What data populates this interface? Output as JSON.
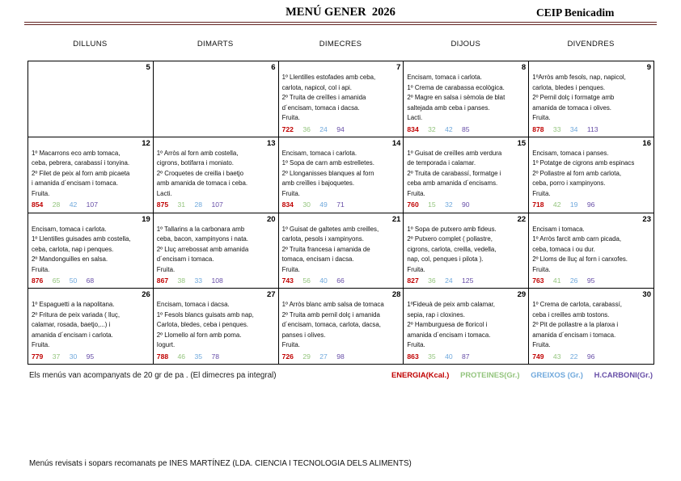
{
  "header": {
    "title": "MENÚ GENER  2026",
    "school": "CEIP Benicadim"
  },
  "calendar": {
    "day_headers": [
      "DILLUNS",
      "DIMARTS",
      "DIMECRES",
      "DIJOUS",
      "DIVENDRES"
    ],
    "weeks": [
      {
        "cells": [
          {
            "day": "5",
            "menu": "",
            "values": null
          },
          {
            "day": "6",
            "menu": "",
            "values": null
          },
          {
            "day": "7",
            "menu": "1º Llentilles estofades amb ceba,\ncarlota, napicol, col i api.\n2º Truita de creïlles i amanida\nd´encisam, tomaca i dacsa.\nFruita.",
            "values": [
              "722",
              "36",
              "24",
              "94"
            ]
          },
          {
            "day": "8",
            "menu": "Encisam, tomaca i carlota.\n1º Crema de carabassa ecològica.\n2º Magre en salsa i sèmola de blat\nsaltejada amb ceba i panses.\nLacti.",
            "values": [
              "834",
              "32",
              "42",
              "85"
            ]
          },
          {
            "day": "9",
            "menu": "1ºArròs amb fesols, nap, napicol,\ncarlota, bledes i penques.\n2º Pernil dolç i formatge amb\namanida de tomaca i olives.\nFruita.",
            "values": [
              "878",
              "33",
              "34",
              "113"
            ]
          }
        ]
      },
      {
        "cells": [
          {
            "day": "12",
            "menu": "1º Macarrons eco amb tomaca,\nceba, pebrera, carabassí i tonyina.\n2º Filet de peix al forn amb picaeta\ni amanida d´encisam i tomaca.\nFruita.",
            "values": [
              "854",
              "28",
              "42",
              "107"
            ]
          },
          {
            "day": "13",
            "menu": "1º Arròs al forn amb costella,\ncigrons, botifarra i moniato.\n2º Croquetes de creilla i baetjo\namb amanida de tomaca i ceba.\nLacti.",
            "values": [
              "875",
              "31",
              "28",
              "107"
            ]
          },
          {
            "day": "14",
            "menu": "Encisam, tomaca i carlota.\n1º Sopa de carn amb estrelletes.\n2º Llonganisses blanques al forn\namb creïlles i bajoquetes.\nFruita.",
            "values": [
              "834",
              "30",
              "49",
              "71"
            ]
          },
          {
            "day": "15",
            "menu": "1º Guisat de creïlles amb verdura\nde temporada i calamar.\n2º Truita de carabassí, formatge i\nceba amb amanida d´encisams.\nFruita.",
            "values": [
              "760",
              "15",
              "32",
              "90"
            ]
          },
          {
            "day": "16",
            "menu": "Encisam, tomaca i panses.\n1º Potatge de cigrons amb espinacs\n2º Pollastre al forn amb carlota,\nceba, porro i xampinyons.\nFruita.",
            "values": [
              "718",
              "42",
              "19",
              "96"
            ]
          }
        ]
      },
      {
        "cells": [
          {
            "day": "19",
            "menu": "Encisam, tomaca i carlota.\n1º Llentilles guisades amb costella,\nceba, carlota, nap i penques.\n2º Mandonguilles en salsa.\nFruita.",
            "values": [
              "876",
              "65",
              "50",
              "68"
            ]
          },
          {
            "day": "20",
            "menu": "1º Tallarins a la carbonara amb\nceba, bacon, xampinyons i nata.\n2º Lluç arrebossat amb amanida\nd´encisam i tomaca.\nFruita.",
            "values": [
              "867",
              "38",
              "33",
              "108"
            ]
          },
          {
            "day": "21",
            "menu": "1º Guisat de galtetes amb creilles,\ncarlota, pesols i xampinyons.\n2º Truita francesa i amanida de\ntomaca, encisam i dacsa.\nFruita.",
            "values": [
              "743",
              "56",
              "40",
              "66"
            ]
          },
          {
            "day": "22",
            "menu": "1º Sopa de putxero amb fideus.\n2º Putxero complet ( pollastre,\ncigrons, carlota, creilla, vedella,\nnap, col, penques i pilota ).\nFruita.",
            "values": [
              "827",
              "36",
              "24",
              "125"
            ]
          },
          {
            "day": "23",
            "menu": "Encisam i tomaca.\n1º Arròs farcit amb carn picada,\nceba, tomaca i ou dur.\n2º Lloms de lluç al forn i carxofes.\nFruita.",
            "values": [
              "763",
              "41",
              "26",
              "95"
            ]
          }
        ]
      },
      {
        "cells": [
          {
            "day": "26",
            "menu": "1º Espaguetti a la napolitana.\n2º Fritura de peix variada ( lluç,\ncalamar, rosada, baetjo,...) i\namanida d´encisam i carlota.\nFruita.",
            "values": [
              "779",
              "37",
              "30",
              "95"
            ]
          },
          {
            "day": "27",
            "menu": "Encisam, tomaca i dacsa.\n1º Fesols blancs guisats amb nap,\nCarlota, bledes, ceba i penques.\n2º Llomello al forn amb poma.\nIogurt.",
            "values": [
              "788",
              "46",
              "35",
              "78"
            ]
          },
          {
            "day": "28",
            "menu": "1º Arròs blanc amb salsa de tomaca\n2º Truita amb pernil dolç i amanida\nd´encisam, tomaca, carlota, dacsa,\npanses i olives.\nFruita.",
            "values": [
              "726",
              "29",
              "27",
              "98"
            ]
          },
          {
            "day": "29",
            "menu": "1ºFideuà de peix amb calamar,\nsepia, rap i cloxines.\n2º Hamburguesa de floricol i\namanida d´encisam i tomaca.\nFruita.",
            "values": [
              "863",
              "35",
              "40",
              "87"
            ]
          },
          {
            "day": "30",
            "menu": "1º Crema de carlota, carabassí,\nceba i creilles amb tostons.\n2º Pit de pollastre a la planxa i\namanida d´encisam i tomaca.\nFruita.",
            "values": [
              "749",
              "43",
              "22",
              "96"
            ]
          }
        ]
      }
    ]
  },
  "footer": {
    "note": "Els menús van acompanyats de 20 gr de pa . (El dimecres pa integral)",
    "legend": [
      {
        "label": "ENERGIA(Kcal.)",
        "color": "#c00000"
      },
      {
        "label": "PROTEINES(Gr.)",
        "color": "#93c47d"
      },
      {
        "label": "GREIXOS (Gr.)",
        "color": "#6fa8dc"
      },
      {
        "label": "H.CARBONI(Gr.)",
        "color": "#674ea7"
      }
    ],
    "reviewer": "Menús revisats i sopars recomanats pe INES MARTÍNEZ (LDA. CIENCIA I TECNOLOGIA DELS ALIMENTS)"
  },
  "colors": {
    "energia": "#c00000",
    "proteines": "#93c47d",
    "greixos": "#6fa8dc",
    "hcarboni": "#674ea7",
    "title_rule": "#632423"
  }
}
